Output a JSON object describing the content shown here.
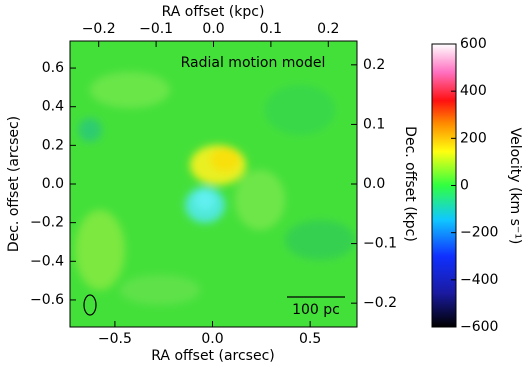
{
  "chart_data": {
    "type": "map",
    "title": "Radial motion model",
    "xlabel": "RA offset (arcsec)",
    "ylabel": "Dec. offset (arcsec)",
    "x2label": "RA offset (kpc)",
    "y2label": "Dec. offset (kpc)",
    "colorbar_label": "Velocity (km s⁻¹)",
    "scalebar_label": "100 pc",
    "xlim": [
      -0.73,
      0.74
    ],
    "xticks": [
      {
        "value": -0.5,
        "label": "−0.5"
      },
      {
        "value": 0,
        "label": "0.0"
      },
      {
        "value": 0.5,
        "label": "0.5"
      }
    ],
    "ylim": [
      -0.74,
      0.74
    ],
    "yticks": [
      {
        "value": -0.6,
        "label": "−0.6"
      },
      {
        "value": -0.4,
        "label": "−0.4"
      },
      {
        "value": -0.2,
        "label": "−0.2"
      },
      {
        "value": 0,
        "label": "0.0"
      },
      {
        "value": 0.2,
        "label": "0.2"
      },
      {
        "value": 0.4,
        "label": "0.4"
      },
      {
        "value": 0.6,
        "label": "0.6"
      }
    ],
    "x2lim": [
      -0.25,
      0.25
    ],
    "x2ticks": [
      {
        "value": -0.2,
        "label": "−0.2"
      },
      {
        "value": -0.1,
        "label": "−0.1"
      },
      {
        "value": 0,
        "label": "0.0"
      },
      {
        "value": 0.1,
        "label": "0.1"
      },
      {
        "value": 0.2,
        "label": "0.2"
      }
    ],
    "y2lim": [
      -0.24,
      0.24
    ],
    "y2ticks": [
      {
        "value": -0.2,
        "label": "−0.2"
      },
      {
        "value": -0.1,
        "label": "−0.1"
      },
      {
        "value": 0,
        "label": "0.0"
      },
      {
        "value": 0.1,
        "label": "0.1"
      },
      {
        "value": 0.2,
        "label": "0.2"
      }
    ],
    "clim": [
      -600,
      600
    ],
    "cticks": [
      {
        "value": -600,
        "label": "−600"
      },
      {
        "value": -400,
        "label": "−400"
      },
      {
        "value": -200,
        "label": "−200"
      },
      0,
      200,
      400,
      600
    ]
  }
}
